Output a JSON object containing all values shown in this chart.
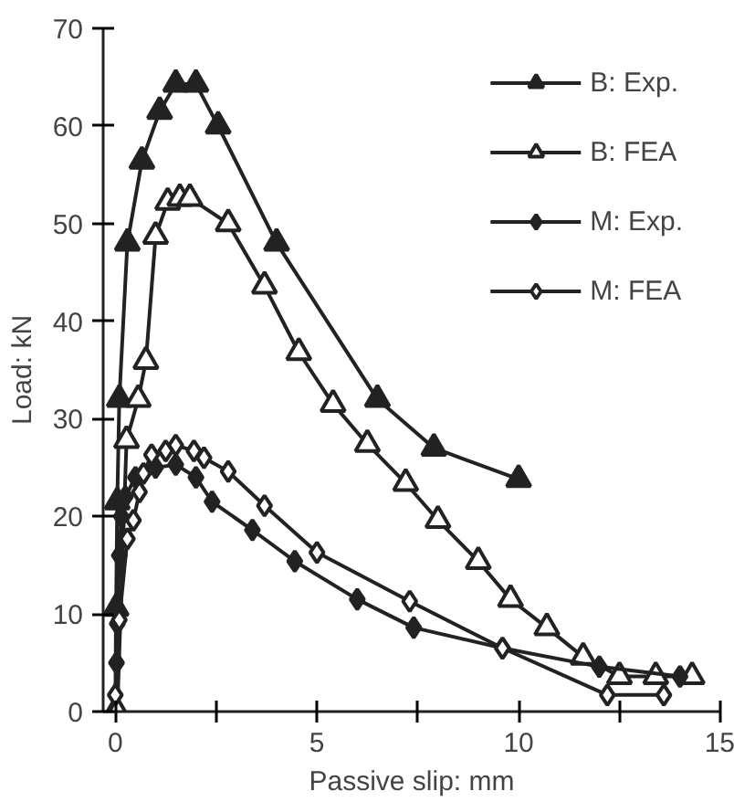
{
  "chart_data": {
    "type": "line",
    "xlabel": "Passive slip: mm",
    "ylabel": "Load: kN",
    "xlim": [
      -0.3,
      15
    ],
    "ylim": [
      0,
      70
    ],
    "xticks": [
      0,
      {
        "value": 2.5,
        "label": null
      },
      5,
      {
        "value": 7.5,
        "label": null
      },
      10,
      {
        "value": 12.5,
        "label": null
      },
      15
    ],
    "yticks": [
      0,
      10,
      20,
      30,
      40,
      50,
      60,
      70
    ],
    "grid": false,
    "legend": "top right",
    "line_style": "solid",
    "series": [
      {
        "name": "B: Exp.",
        "color": "#222222",
        "marker": "triangle",
        "x": [
          0,
          0.02,
          0.05,
          0.1,
          0.3,
          0.66,
          1.1,
          1.5,
          2.0,
          2.55,
          4.0,
          6.5,
          7.9,
          10.0
        ],
        "values": [
          0,
          10.6,
          21.5,
          32,
          48,
          56.4,
          61.5,
          64.3,
          64.3,
          60,
          48,
          32,
          27,
          23.8
        ]
      },
      {
        "name": "B: FEA",
        "color": "#222222",
        "marker": "triangle",
        "x": [
          0.05,
          0.28,
          0.57,
          0.76,
          1.0,
          1.3,
          1.6,
          1.85,
          2.8,
          3.7,
          4.55,
          5.4,
          6.25,
          7.2,
          8.0,
          9.0,
          9.8,
          10.7,
          11.6,
          12.5,
          13.4,
          14.3
        ],
        "values": [
          0,
          27.8,
          32,
          35.9,
          48.7,
          52.2,
          52.6,
          52.6,
          50,
          43.6,
          36.8,
          31.5,
          27.4,
          23.4,
          19.6,
          15.4,
          11.5,
          8.6,
          5.6,
          3.6,
          3.6,
          3.6
        ]
      },
      {
        "name": "M: Exp.",
        "color": "#222222",
        "marker": "diamond",
        "x": [
          0.03,
          0.05,
          0.1,
          0.15,
          0.25,
          0.5,
          1.0,
          1.5,
          2.0,
          2.4,
          3.4,
          4.45,
          6.0,
          7.4,
          9.6,
          12.0,
          14.0
        ],
        "values": [
          5,
          9,
          16,
          20,
          22,
          24,
          25,
          25.3,
          24,
          21.5,
          18.6,
          15.4,
          11.5,
          8.6,
          6.5,
          4.6,
          3.6
        ]
      },
      {
        "name": "M: FEA",
        "color": "#222222",
        "marker": "diamond",
        "x": [
          0,
          0.1,
          0.3,
          0.45,
          0.6,
          0.7,
          0.9,
          1.25,
          1.5,
          1.95,
          2.2,
          2.8,
          3.7,
          5.0,
          7.3,
          9.6,
          12.2,
          13.6
        ],
        "values": [
          1.7,
          9.4,
          17.7,
          19.6,
          22.5,
          24.4,
          26.3,
          26.7,
          27.3,
          26.7,
          26,
          24.6,
          21.1,
          16.3,
          11.3,
          6.5,
          1.7,
          1.7
        ]
      }
    ]
  }
}
